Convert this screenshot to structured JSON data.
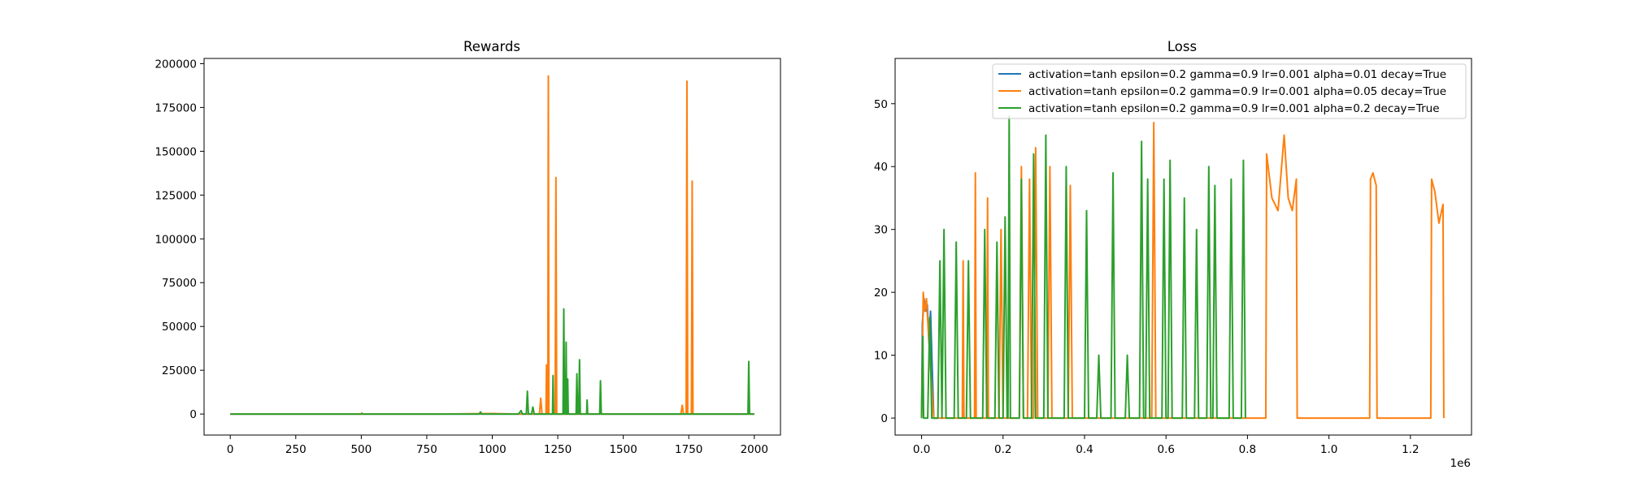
{
  "chart_data": [
    {
      "type": "line",
      "title": "Rewards",
      "xlabel": "",
      "ylabel": "",
      "xlim": [
        -100,
        2100
      ],
      "ylim": [
        -12000,
        203000
      ],
      "x_ticks": [
        {
          "value": 0,
          "label": "0"
        },
        {
          "value": 250,
          "label": "250"
        },
        {
          "value": 500,
          "label": "500"
        },
        {
          "value": 750,
          "label": "750"
        },
        {
          "value": 1000,
          "label": "1000"
        },
        {
          "value": 1250,
          "label": "1250"
        },
        {
          "value": 1500,
          "label": "1500"
        },
        {
          "value": 1750,
          "label": "1750"
        },
        {
          "value": 2000,
          "label": "2000"
        }
      ],
      "y_ticks": [
        {
          "value": 0,
          "label": "0"
        },
        {
          "value": 25000,
          "label": "25000"
        },
        {
          "value": 50000,
          "label": "50000"
        },
        {
          "value": 75000,
          "label": "75000"
        },
        {
          "value": 100000,
          "label": "100000"
        },
        {
          "value": 125000,
          "label": "125000"
        },
        {
          "value": 150000,
          "label": "150000"
        },
        {
          "value": 175000,
          "label": "175000"
        },
        {
          "value": 200000,
          "label": "200000"
        }
      ],
      "grid": false,
      "series": [
        {
          "color": "#1f77b4",
          "points": [
            [
              0,
              0
            ],
            [
              2000,
              0
            ]
          ]
        },
        {
          "color": "#ff7f0e",
          "points": [
            [
              0,
              0
            ],
            [
              500,
              0
            ],
            [
              502,
              600
            ],
            [
              505,
              0
            ],
            [
              800,
              0
            ],
            [
              1000,
              300
            ],
            [
              1100,
              0
            ],
            [
              1180,
              0
            ],
            [
              1185,
              9000
            ],
            [
              1190,
              0
            ],
            [
              1205,
              0
            ],
            [
              1207,
              28000
            ],
            [
              1210,
              0
            ],
            [
              1212,
              0
            ],
            [
              1214,
              193000
            ],
            [
              1216,
              0
            ],
            [
              1240,
              0
            ],
            [
              1243,
              135000
            ],
            [
              1246,
              0
            ],
            [
              1500,
              0
            ],
            [
              1720,
              0
            ],
            [
              1725,
              5000
            ],
            [
              1730,
              0
            ],
            [
              1740,
              0
            ],
            [
              1743,
              190000
            ],
            [
              1746,
              0
            ],
            [
              1760,
              0
            ],
            [
              1763,
              133000
            ],
            [
              1766,
              0
            ],
            [
              2000,
              0
            ]
          ]
        },
        {
          "color": "#2ca02c",
          "points": [
            [
              0,
              0
            ],
            [
              950,
              0
            ],
            [
              955,
              1200
            ],
            [
              960,
              0
            ],
            [
              1100,
              0
            ],
            [
              1110,
              2000
            ],
            [
              1115,
              0
            ],
            [
              1130,
              0
            ],
            [
              1134,
              13000
            ],
            [
              1138,
              0
            ],
            [
              1150,
              0
            ],
            [
              1155,
              4000
            ],
            [
              1160,
              0
            ],
            [
              1230,
              0
            ],
            [
              1232,
              22000
            ],
            [
              1234,
              0
            ],
            [
              1270,
              0
            ],
            [
              1273,
              60000
            ],
            [
              1276,
              0
            ],
            [
              1280,
              0
            ],
            [
              1282,
              41000
            ],
            [
              1284,
              0
            ],
            [
              1286,
              0
            ],
            [
              1288,
              20000
            ],
            [
              1290,
              0
            ],
            [
              1320,
              0
            ],
            [
              1323,
              23000
            ],
            [
              1326,
              0
            ],
            [
              1330,
              0
            ],
            [
              1333,
              31000
            ],
            [
              1336,
              0
            ],
            [
              1360,
              0
            ],
            [
              1362,
              8000
            ],
            [
              1364,
              0
            ],
            [
              1410,
              0
            ],
            [
              1413,
              19000
            ],
            [
              1416,
              0
            ],
            [
              1976,
              0
            ],
            [
              1979,
              30000
            ],
            [
              1982,
              0
            ],
            [
              2000,
              0
            ]
          ]
        }
      ]
    },
    {
      "type": "line",
      "title": "Loss",
      "xlabel": "",
      "ylabel": "",
      "x_offset_label": "1e6",
      "xlim": [
        -0.065,
        1.35
      ],
      "ylim": [
        -2.7,
        57.2
      ],
      "x_ticks": [
        {
          "value": 0.0,
          "label": "0.0"
        },
        {
          "value": 0.2,
          "label": "0.2"
        },
        {
          "value": 0.4,
          "label": "0.4"
        },
        {
          "value": 0.6,
          "label": "0.6"
        },
        {
          "value": 0.8,
          "label": "0.8"
        },
        {
          "value": 1.0,
          "label": "1.0"
        },
        {
          "value": 1.2,
          "label": "1.2"
        }
      ],
      "y_ticks": [
        {
          "value": 0,
          "label": "0"
        },
        {
          "value": 10,
          "label": "10"
        },
        {
          "value": 20,
          "label": "20"
        },
        {
          "value": 30,
          "label": "30"
        },
        {
          "value": 40,
          "label": "40"
        },
        {
          "value": 50,
          "label": "50"
        }
      ],
      "grid": false,
      "legend_position": "top-right",
      "series": [
        {
          "name": "activation=tanh epsilon=0.2 gamma=0.9 lr=0.001 alpha=0.01 decay=True",
          "color": "#1f77b4",
          "points": [
            [
              0.0,
              0
            ],
            [
              0.002,
              15
            ],
            [
              0.006,
              19
            ],
            [
              0.01,
              17
            ],
            [
              0.014,
              18
            ],
            [
              0.018,
              12
            ],
            [
              0.022,
              17
            ],
            [
              0.026,
              8
            ],
            [
              0.03,
              0
            ],
            [
              0.04,
              0
            ]
          ]
        },
        {
          "name": "activation=tanh epsilon=0.2 gamma=0.9 lr=0.001 alpha=0.05 decay=True",
          "color": "#ff7f0e",
          "points": [
            [
              0.0,
              0
            ],
            [
              0.004,
              20
            ],
            [
              0.008,
              17
            ],
            [
              0.012,
              19
            ],
            [
              0.02,
              10
            ],
            [
              0.03,
              0
            ],
            [
              0.1,
              0
            ],
            [
              0.102,
              25
            ],
            [
              0.104,
              0
            ],
            [
              0.13,
              0
            ],
            [
              0.132,
              39
            ],
            [
              0.134,
              0
            ],
            [
              0.16,
              0
            ],
            [
              0.162,
              35
            ],
            [
              0.164,
              0
            ],
            [
              0.19,
              0
            ],
            [
              0.195,
              30
            ],
            [
              0.2,
              0
            ],
            [
              0.24,
              0
            ],
            [
              0.245,
              40
            ],
            [
              0.25,
              0
            ],
            [
              0.26,
              0
            ],
            [
              0.265,
              38
            ],
            [
              0.27,
              0
            ],
            [
              0.275,
              0
            ],
            [
              0.28,
              43
            ],
            [
              0.285,
              0
            ],
            [
              0.31,
              0
            ],
            [
              0.315,
              40
            ],
            [
              0.32,
              0
            ],
            [
              0.36,
              0
            ],
            [
              0.365,
              37
            ],
            [
              0.37,
              0
            ],
            [
              0.565,
              0
            ],
            [
              0.57,
              47
            ],
            [
              0.575,
              0
            ],
            [
              0.845,
              0
            ],
            [
              0.847,
              42
            ],
            [
              0.86,
              35
            ],
            [
              0.875,
              33
            ],
            [
              0.89,
              45
            ],
            [
              0.9,
              35
            ],
            [
              0.91,
              33
            ],
            [
              0.92,
              38
            ],
            [
              0.922,
              0
            ],
            [
              1.1,
              0
            ],
            [
              1.102,
              38
            ],
            [
              1.108,
              39
            ],
            [
              1.116,
              37
            ],
            [
              1.118,
              0
            ],
            [
              1.25,
              0
            ],
            [
              1.252,
              38
            ],
            [
              1.26,
              36
            ],
            [
              1.27,
              31
            ],
            [
              1.28,
              34
            ],
            [
              1.282,
              0
            ]
          ]
        },
        {
          "name": "activation=tanh epsilon=0.2 gamma=0.9 lr=0.001 alpha=0.2 decay=True",
          "color": "#2ca02c",
          "points": [
            [
              0.0,
              0
            ],
            [
              0.003,
              13
            ],
            [
              0.005,
              0
            ],
            [
              0.015,
              0
            ],
            [
              0.02,
              16
            ],
            [
              0.025,
              0
            ],
            [
              0.04,
              0
            ],
            [
              0.045,
              25
            ],
            [
              0.05,
              0
            ],
            [
              0.055,
              30
            ],
            [
              0.06,
              0
            ],
            [
              0.08,
              0
            ],
            [
              0.085,
              28
            ],
            [
              0.09,
              0
            ],
            [
              0.11,
              0
            ],
            [
              0.115,
              25
            ],
            [
              0.12,
              0
            ],
            [
              0.15,
              0
            ],
            [
              0.155,
              30
            ],
            [
              0.16,
              0
            ],
            [
              0.18,
              0
            ],
            [
              0.185,
              28
            ],
            [
              0.19,
              0
            ],
            [
              0.2,
              0
            ],
            [
              0.205,
              32
            ],
            [
              0.21,
              0
            ],
            [
              0.212,
              0
            ],
            [
              0.215,
              48
            ],
            [
              0.218,
              0
            ],
            [
              0.24,
              0
            ],
            [
              0.245,
              38
            ],
            [
              0.25,
              0
            ],
            [
              0.27,
              0
            ],
            [
              0.275,
              42
            ],
            [
              0.28,
              0
            ],
            [
              0.3,
              0
            ],
            [
              0.305,
              45
            ],
            [
              0.31,
              0
            ],
            [
              0.35,
              0
            ],
            [
              0.355,
              40
            ],
            [
              0.36,
              0
            ],
            [
              0.4,
              0
            ],
            [
              0.405,
              33
            ],
            [
              0.41,
              0
            ],
            [
              0.43,
              0
            ],
            [
              0.435,
              10
            ],
            [
              0.44,
              0
            ],
            [
              0.465,
              0
            ],
            [
              0.47,
              39
            ],
            [
              0.475,
              0
            ],
            [
              0.5,
              0
            ],
            [
              0.505,
              10
            ],
            [
              0.51,
              0
            ],
            [
              0.535,
              0
            ],
            [
              0.54,
              44
            ],
            [
              0.545,
              0
            ],
            [
              0.55,
              0
            ],
            [
              0.555,
              38
            ],
            [
              0.56,
              0
            ],
            [
              0.59,
              0
            ],
            [
              0.595,
              38
            ],
            [
              0.6,
              0
            ],
            [
              0.605,
              0
            ],
            [
              0.61,
              41
            ],
            [
              0.615,
              0
            ],
            [
              0.64,
              0
            ],
            [
              0.645,
              35
            ],
            [
              0.65,
              0
            ],
            [
              0.67,
              0
            ],
            [
              0.675,
              30
            ],
            [
              0.68,
              0
            ],
            [
              0.7,
              0
            ],
            [
              0.705,
              40
            ],
            [
              0.71,
              0
            ],
            [
              0.715,
              0
            ],
            [
              0.72,
              37
            ],
            [
              0.725,
              0
            ],
            [
              0.755,
              0
            ],
            [
              0.76,
              38
            ],
            [
              0.765,
              0
            ],
            [
              0.785,
              0
            ],
            [
              0.79,
              41
            ],
            [
              0.795,
              0
            ]
          ]
        }
      ]
    }
  ]
}
